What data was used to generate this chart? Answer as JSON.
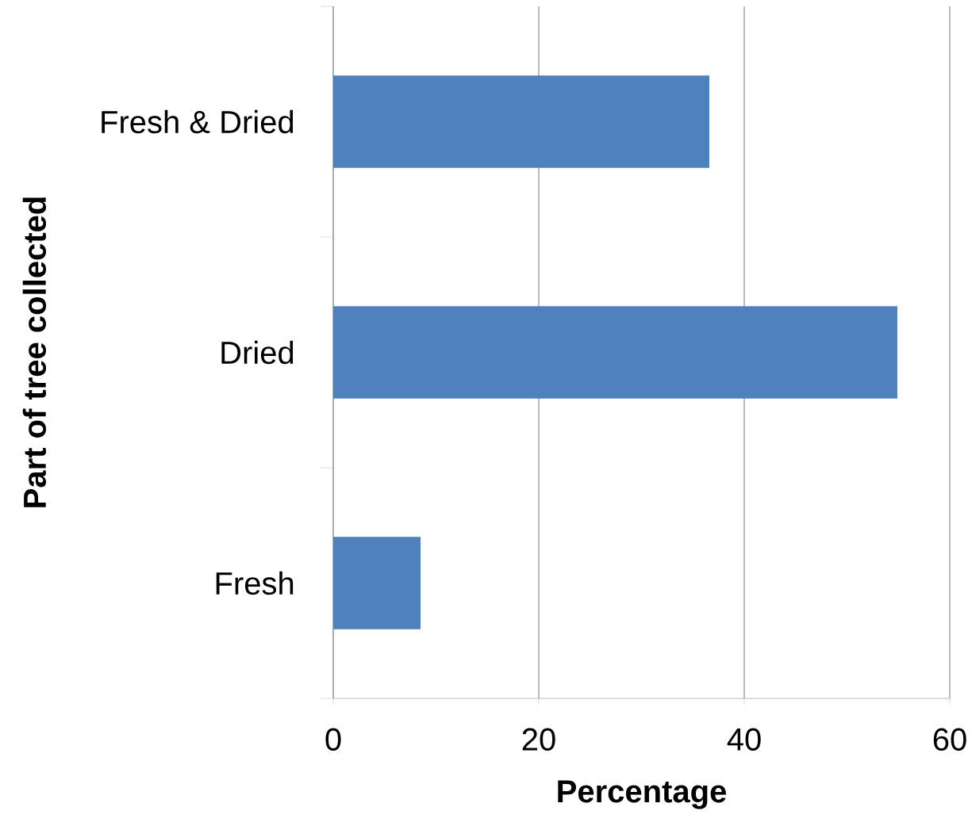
{
  "chart_data": {
    "type": "bar",
    "orientation": "horizontal",
    "xlabel": "Percentage",
    "ylabel": "Part of tree collected",
    "categories": [
      "Fresh & Dried",
      "Dried",
      "Fresh"
    ],
    "values": [
      36.6,
      54.9,
      8.5
    ],
    "color": "#4f81bd",
    "xlim": [
      0,
      60
    ],
    "xticks": [
      0,
      20,
      40,
      60
    ],
    "grid": "x"
  }
}
